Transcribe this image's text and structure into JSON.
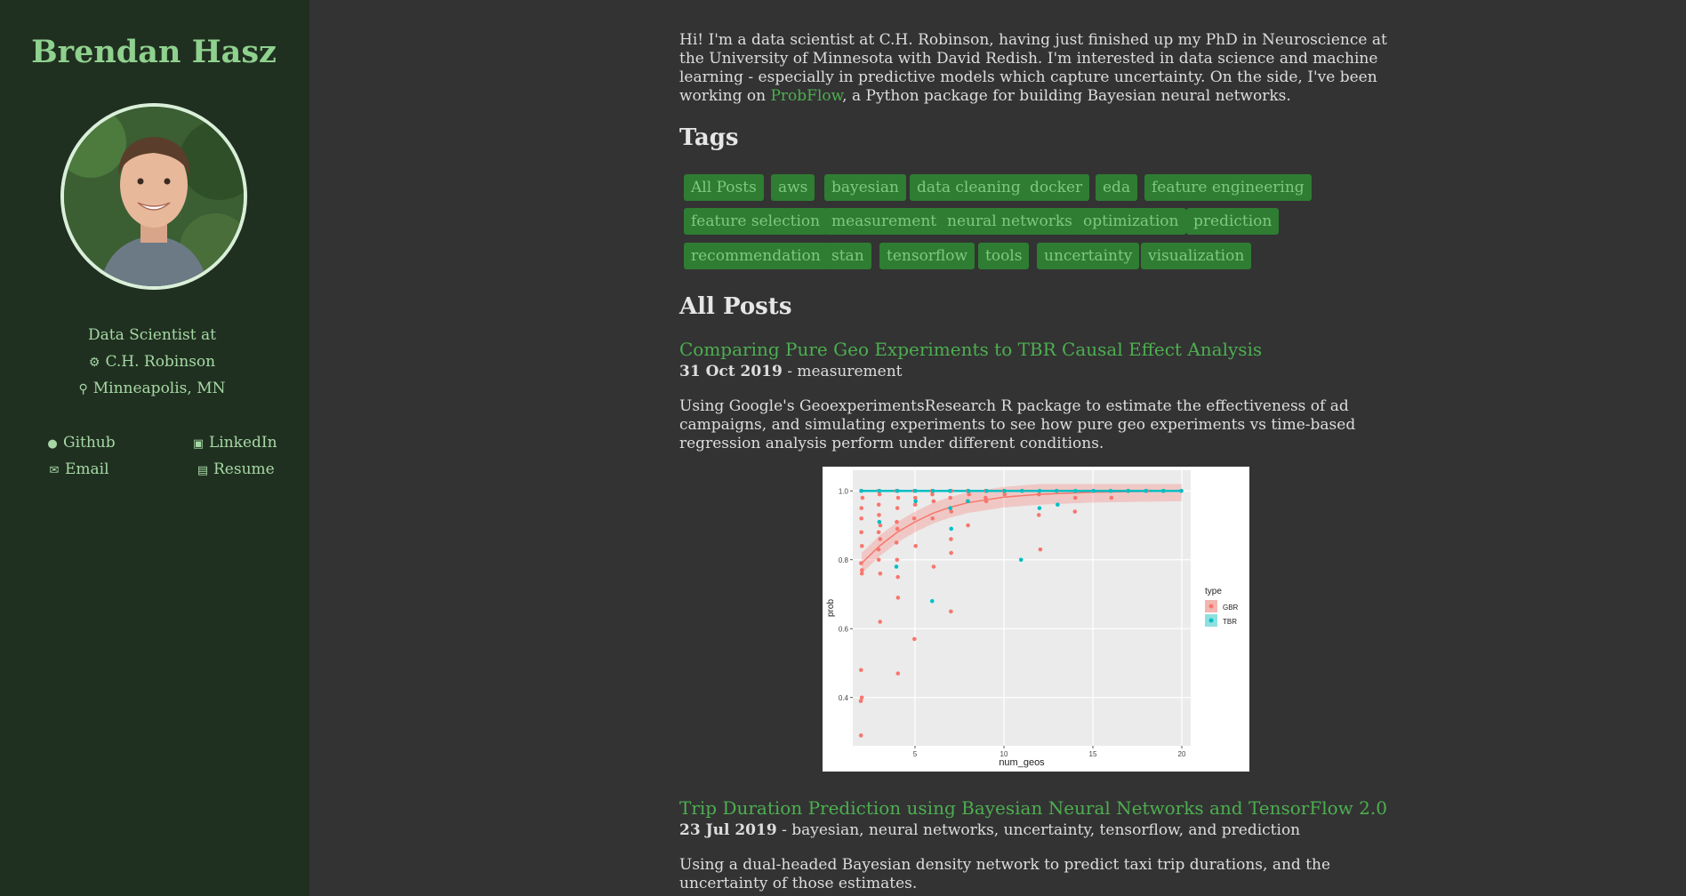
{
  "sidebar": {
    "name": "Brendan Hasz",
    "job_line1": "Data Scientist at",
    "company": "C.H. Robinson",
    "location": "Minneapolis, MN",
    "links": [
      {
        "label": "Github",
        "icon": "github-icon"
      },
      {
        "label": "LinkedIn",
        "icon": "linkedin-icon"
      },
      {
        "label": "Email",
        "icon": "email-icon"
      },
      {
        "label": "Resume",
        "icon": "document-icon"
      }
    ]
  },
  "intro": {
    "before": "Hi! I'm a data scientist at C.H. Robinson, having just finished up my PhD in Neuroscience at the University of Minnesota with David Redish. I'm interested in data science and machine learning - especially in predictive models which capture uncertainty. On the side, I've been working on ",
    "link": "ProbFlow",
    "after": ", a Python package for building Bayesian neural networks."
  },
  "tags_heading": "Tags",
  "tags": [
    "All Posts",
    "aws",
    "bayesian",
    "data cleaning",
    "docker",
    "eda",
    "feature engineering",
    "feature selection",
    "measurement",
    "neural networks",
    "optimization",
    "prediction",
    "recommendation",
    "stan",
    "tensorflow",
    "tools",
    "uncertainty",
    "visualization"
  ],
  "posts_heading": "All Posts",
  "posts": [
    {
      "title": "Comparing Pure Geo Experiments to TBR Causal Effect Analysis",
      "date": "31 Oct 2019",
      "tags": " - measurement",
      "description": "Using Google's GeoexperimentsResearch R package to estimate the effectiveness of ad campaigns, and simulating experiments to see how pure geo experiments vs time-based regression analysis perform under different conditions."
    },
    {
      "title": "Trip Duration Prediction using Bayesian Neural Networks and TensorFlow 2.0",
      "date": "23 Jul 2019",
      "tags": " - bayesian, neural networks, uncertainty, tensorflow, and prediction",
      "description": "Using a dual-headed Bayesian density network to predict taxi trip durations, and the uncertainty of those estimates."
    }
  ],
  "colors": {
    "sidebar_bg": "#203020",
    "page_bg": "#333333",
    "accent": "#4caf50",
    "tag_bg": "#2e7d32",
    "gbr": "#f8766d",
    "tbr": "#00bfc4"
  },
  "chart_data": {
    "type": "scatter",
    "xlabel": "num_geos",
    "ylabel": "prob",
    "xlim": [
      1.5,
      20.5
    ],
    "ylim": [
      0.26,
      1.06
    ],
    "xticks": [
      5,
      10,
      15,
      20
    ],
    "yticks": [
      0.4,
      0.6,
      0.8,
      1.0
    ],
    "legend_title": "type",
    "legend_position": "right",
    "grid": true,
    "series": [
      {
        "name": "GBR",
        "color": "#f8766d",
        "points": [
          [
            2,
            1.0
          ],
          [
            2,
            0.98
          ],
          [
            2,
            0.95
          ],
          [
            2,
            0.92
          ],
          [
            2,
            0.88
          ],
          [
            2,
            0.84
          ],
          [
            2,
            0.79
          ],
          [
            2,
            0.77
          ],
          [
            2,
            0.76
          ],
          [
            2,
            0.48
          ],
          [
            2,
            0.4
          ],
          [
            2,
            0.29
          ],
          [
            2,
            0.39
          ],
          [
            3,
            1.0
          ],
          [
            3,
            0.99
          ],
          [
            3,
            0.96
          ],
          [
            3,
            0.93
          ],
          [
            3,
            0.9
          ],
          [
            3,
            0.88
          ],
          [
            3,
            0.86
          ],
          [
            3,
            0.83
          ],
          [
            3,
            0.8
          ],
          [
            3,
            0.76
          ],
          [
            3,
            0.62
          ],
          [
            4,
            1.0
          ],
          [
            4,
            0.98
          ],
          [
            4,
            0.95
          ],
          [
            4,
            0.91
          ],
          [
            4,
            0.89
          ],
          [
            4,
            0.85
          ],
          [
            4,
            0.8
          ],
          [
            4,
            0.75
          ],
          [
            4,
            0.69
          ],
          [
            4,
            0.47
          ],
          [
            5,
            1.0
          ],
          [
            5,
            0.98
          ],
          [
            5,
            0.96
          ],
          [
            5,
            0.92
          ],
          [
            5,
            0.84
          ],
          [
            5,
            0.57
          ],
          [
            6,
            1.0
          ],
          [
            6,
            0.99
          ],
          [
            6,
            0.97
          ],
          [
            6,
            0.92
          ],
          [
            6,
            0.78
          ],
          [
            7,
            1.0
          ],
          [
            7,
            0.98
          ],
          [
            7,
            0.94
          ],
          [
            7,
            0.86
          ],
          [
            7,
            0.82
          ],
          [
            7,
            0.65
          ],
          [
            8,
            1.0
          ],
          [
            8,
            0.99
          ],
          [
            8,
            0.97
          ],
          [
            8,
            0.9
          ],
          [
            9,
            1.0
          ],
          [
            9,
            0.98
          ],
          [
            9,
            0.97
          ],
          [
            10,
            1.0
          ],
          [
            10,
            0.99
          ],
          [
            11,
            1.0
          ],
          [
            12,
            0.99
          ],
          [
            12,
            0.93
          ],
          [
            12,
            0.83
          ],
          [
            13,
            1.0
          ],
          [
            14,
            0.98
          ],
          [
            14,
            0.94
          ],
          [
            15,
            1.0
          ],
          [
            16,
            0.98
          ],
          [
            17,
            1.0
          ],
          [
            18,
            1.0
          ],
          [
            19,
            1.0
          ],
          [
            20,
            1.0
          ]
        ],
        "trend": [
          [
            2,
            0.79
          ],
          [
            3,
            0.84
          ],
          [
            4,
            0.88
          ],
          [
            5,
            0.91
          ],
          [
            6,
            0.935
          ],
          [
            7,
            0.953
          ],
          [
            8,
            0.966
          ],
          [
            10,
            0.982
          ],
          [
            12,
            0.99
          ],
          [
            15,
            0.996
          ],
          [
            20,
            1.0
          ]
        ]
      },
      {
        "name": "TBR",
        "color": "#00bfc4",
        "points": [
          [
            2,
            1.0
          ],
          [
            3,
            1.0
          ],
          [
            3,
            0.91
          ],
          [
            4,
            1.0
          ],
          [
            4,
            0.78
          ],
          [
            5,
            1.0
          ],
          [
            5,
            0.97
          ],
          [
            6,
            1.0
          ],
          [
            6,
            0.68
          ],
          [
            7,
            1.0
          ],
          [
            7,
            0.95
          ],
          [
            7,
            0.89
          ],
          [
            8,
            1.0
          ],
          [
            8,
            0.97
          ],
          [
            9,
            1.0
          ],
          [
            10,
            1.0
          ],
          [
            11,
            1.0
          ],
          [
            11,
            0.8
          ],
          [
            12,
            1.0
          ],
          [
            12,
            0.95
          ],
          [
            13,
            1.0
          ],
          [
            13,
            0.96
          ],
          [
            14,
            1.0
          ],
          [
            15,
            1.0
          ],
          [
            16,
            1.0
          ],
          [
            17,
            1.0
          ],
          [
            18,
            1.0
          ],
          [
            19,
            1.0
          ],
          [
            20,
            1.0
          ]
        ],
        "trend": [
          [
            2,
            1.0
          ],
          [
            20,
            1.0
          ]
        ]
      }
    ]
  }
}
